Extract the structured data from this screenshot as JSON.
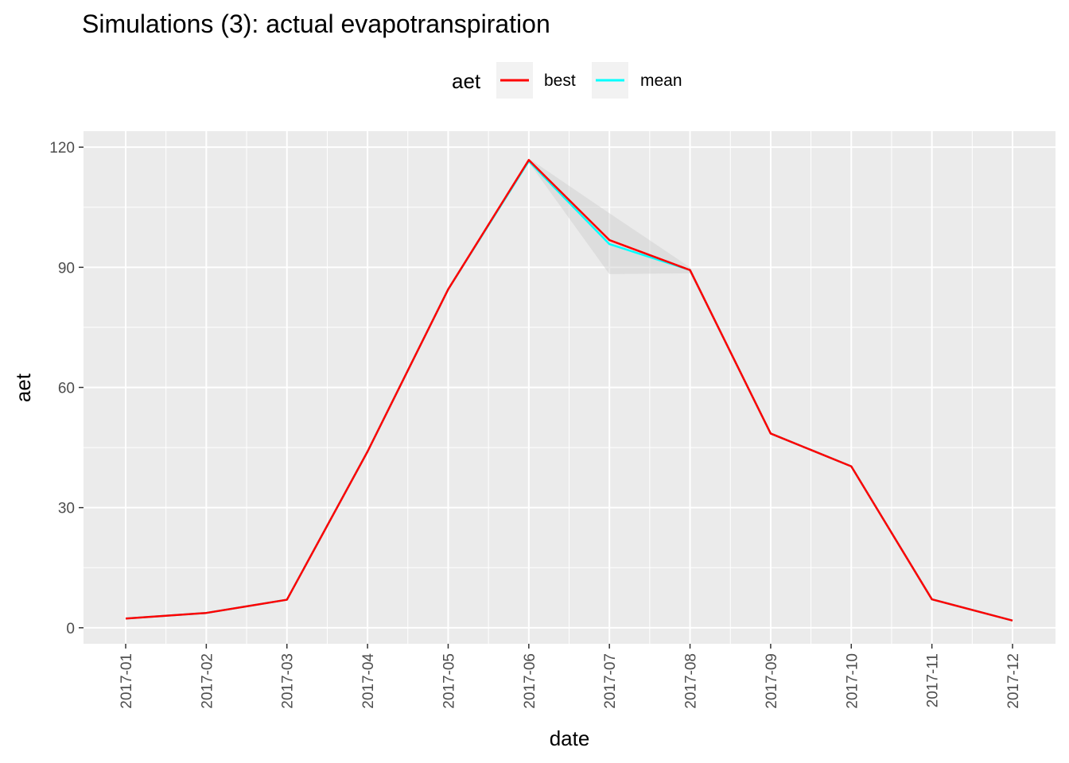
{
  "chart_data": {
    "type": "line",
    "title": "Simulations (3): actual evapotranspiration",
    "xlabel": "date",
    "ylabel": "aet",
    "categories": [
      "2017-01",
      "2017-02",
      "2017-03",
      "2017-04",
      "2017-05",
      "2017-06",
      "2017-07",
      "2017-08",
      "2017-09",
      "2017-10",
      "2017-11",
      "2017-12"
    ],
    "ylim": [
      -4,
      124
    ],
    "yticks": [
      0,
      30,
      60,
      90,
      120
    ],
    "grid": true,
    "legend": {
      "title": "aet",
      "position": "top",
      "entries": [
        {
          "label": "best",
          "color": "#ff0000"
        },
        {
          "label": "mean",
          "color": "#00ffff"
        }
      ]
    },
    "series": [
      {
        "name": "best",
        "color": "#ff0000",
        "values": [
          2.3,
          3.7,
          7.0,
          44.0,
          84.5,
          116.8,
          96.8,
          89.3,
          48.5,
          40.3,
          7.1,
          1.8
        ]
      },
      {
        "name": "mean",
        "color": "#00ffff",
        "values": [
          2.3,
          3.7,
          7.0,
          44.0,
          84.5,
          116.5,
          95.8,
          89.3,
          48.5,
          40.3,
          7.1,
          1.8
        ]
      }
    ],
    "ribbon": {
      "color": "#cccccc",
      "lower": [
        2.3,
        3.7,
        7.0,
        44.0,
        84.5,
        116.2,
        88.3,
        88.5,
        48.5,
        40.3,
        7.1,
        1.8
      ],
      "upper": [
        2.3,
        3.7,
        7.0,
        44.0,
        84.5,
        117.2,
        103.5,
        90.0,
        48.5,
        40.3,
        7.1,
        1.8
      ]
    }
  }
}
